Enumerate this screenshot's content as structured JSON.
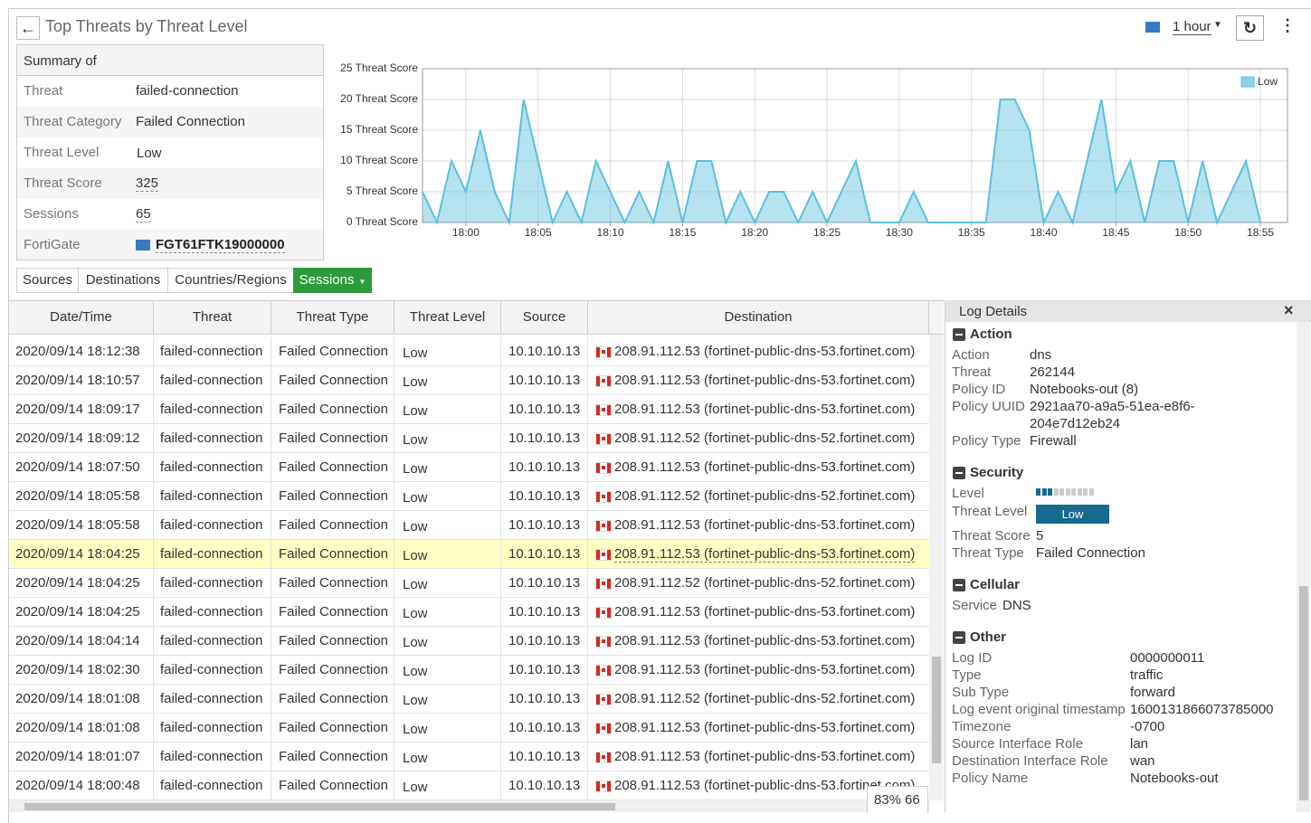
{
  "header": {
    "title": "Top Threats by Threat Level",
    "time_range": "1 hour"
  },
  "summary": {
    "title": "Summary of",
    "rows": [
      [
        "Threat",
        "failed-connection"
      ],
      [
        "Threat Category",
        "Failed Connection"
      ],
      [
        "Threat Level",
        "Low"
      ],
      [
        "Threat Score",
        "325"
      ],
      [
        "Sessions",
        "65"
      ],
      [
        "FortiGate",
        "FGT61FTK19000000"
      ]
    ]
  },
  "chart_data": {
    "type": "area",
    "categories": [
      null,
      null,
      null,
      "18:00",
      null,
      null,
      null,
      null,
      "18:05",
      null,
      null,
      null,
      null,
      "18:10",
      null,
      null,
      null,
      null,
      "18:15",
      null,
      null,
      null,
      null,
      "18:20",
      null,
      null,
      null,
      null,
      "18:25",
      null,
      null,
      null,
      null,
      "18:30",
      null,
      null,
      null,
      null,
      "18:35",
      null,
      null,
      null,
      null,
      "18:40",
      null,
      null,
      null,
      null,
      "18:45",
      null,
      null,
      null,
      null,
      "18:50",
      null,
      null,
      null,
      null,
      "18:55"
    ],
    "series": [
      {
        "name": "Low",
        "color": "#5bc0de",
        "values": [
          5,
          0,
          10,
          5,
          15,
          5,
          0,
          20,
          10,
          0,
          5,
          0,
          10,
          5,
          0,
          5,
          0,
          10,
          0,
          10,
          10,
          0,
          5,
          0,
          5,
          5,
          0,
          5,
          0,
          5,
          10,
          0,
          0,
          0,
          5,
          0,
          0,
          0,
          0,
          0,
          20,
          20,
          15,
          0,
          5,
          0,
          10,
          20,
          5,
          10,
          0,
          10,
          10,
          0,
          10,
          0,
          5,
          10,
          0
        ]
      }
    ],
    "ylim": [
      0,
      25
    ],
    "yticks": [
      {
        "value": 0,
        "label": "0 Threat Score"
      },
      {
        "value": 5,
        "label": "5 Threat Score"
      },
      {
        "value": 10,
        "label": "10 Threat Score"
      },
      {
        "value": 15,
        "label": "15 Threat Score"
      },
      {
        "value": 20,
        "label": "20 Threat Score"
      },
      {
        "value": 25,
        "label": "25 Threat Score"
      }
    ],
    "grid": true,
    "legend": "top-right"
  },
  "tabs": [
    "Sources",
    "Destinations",
    "Countries/Regions",
    "Sessions"
  ],
  "table": {
    "columns": [
      "Date/Time",
      "Threat",
      "Threat Type",
      "Threat Level",
      "Source",
      "Destination"
    ],
    "rows": [
      [
        "2020/09/14 18:12:38",
        "failed-connection",
        "Failed Connection",
        "Low",
        "10.10.10.13",
        "208.91.112.53 (fortinet-public-dns-53.fortinet.com)"
      ],
      [
        "2020/09/14 18:10:57",
        "failed-connection",
        "Failed Connection",
        "Low",
        "10.10.10.13",
        "208.91.112.53 (fortinet-public-dns-53.fortinet.com)"
      ],
      [
        "2020/09/14 18:09:17",
        "failed-connection",
        "Failed Connection",
        "Low",
        "10.10.10.13",
        "208.91.112.53 (fortinet-public-dns-53.fortinet.com)"
      ],
      [
        "2020/09/14 18:09:12",
        "failed-connection",
        "Failed Connection",
        "Low",
        "10.10.10.13",
        "208.91.112.52 (fortinet-public-dns-52.fortinet.com)"
      ],
      [
        "2020/09/14 18:07:50",
        "failed-connection",
        "Failed Connection",
        "Low",
        "10.10.10.13",
        "208.91.112.53 (fortinet-public-dns-53.fortinet.com)"
      ],
      [
        "2020/09/14 18:05:58",
        "failed-connection",
        "Failed Connection",
        "Low",
        "10.10.10.13",
        "208.91.112.52 (fortinet-public-dns-52.fortinet.com)"
      ],
      [
        "2020/09/14 18:05:58",
        "failed-connection",
        "Failed Connection",
        "Low",
        "10.10.10.13",
        "208.91.112.53 (fortinet-public-dns-53.fortinet.com)"
      ],
      [
        "2020/09/14 18:04:25",
        "failed-connection",
        "Failed Connection",
        "Low",
        "10.10.10.13",
        "208.91.112.53 (fortinet-public-dns-53.fortinet.com)"
      ],
      [
        "2020/09/14 18:04:25",
        "failed-connection",
        "Failed Connection",
        "Low",
        "10.10.10.13",
        "208.91.112.52 (fortinet-public-dns-52.fortinet.com)"
      ],
      [
        "2020/09/14 18:04:25",
        "failed-connection",
        "Failed Connection",
        "Low",
        "10.10.10.13",
        "208.91.112.53 (fortinet-public-dns-53.fortinet.com)"
      ],
      [
        "2020/09/14 18:04:14",
        "failed-connection",
        "Failed Connection",
        "Low",
        "10.10.10.13",
        "208.91.112.53 (fortinet-public-dns-53.fortinet.com)"
      ],
      [
        "2020/09/14 18:02:30",
        "failed-connection",
        "Failed Connection",
        "Low",
        "10.10.10.13",
        "208.91.112.53 (fortinet-public-dns-53.fortinet.com)"
      ],
      [
        "2020/09/14 18:01:08",
        "failed-connection",
        "Failed Connection",
        "Low",
        "10.10.10.13",
        "208.91.112.52 (fortinet-public-dns-52.fortinet.com)"
      ],
      [
        "2020/09/14 18:01:08",
        "failed-connection",
        "Failed Connection",
        "Low",
        "10.10.10.13",
        "208.91.112.53 (fortinet-public-dns-53.fortinet.com)"
      ],
      [
        "2020/09/14 18:01:07",
        "failed-connection",
        "Failed Connection",
        "Low",
        "10.10.10.13",
        "208.91.112.53 (fortinet-public-dns-53.fortinet.com)"
      ],
      [
        "2020/09/14 18:00:48",
        "failed-connection",
        "Failed Connection",
        "Low",
        "10.10.10.13",
        "208.91.112.53 (fortinet-public-dns-53.fortinet.com)"
      ]
    ]
  },
  "status": {
    "percent": "83%",
    "count": "66"
  },
  "log_details": {
    "title": "Log Details",
    "sections": [
      {
        "title": "Action",
        "fields": [
          [
            "Action",
            "dns"
          ],
          [
            "Threat",
            "262144"
          ],
          [
            "Policy ID",
            "Notebooks-out (8)"
          ],
          [
            "Policy UUID",
            "2921aa70-a9a5-51ea-e8f6-204e7d12eb24"
          ],
          [
            "Policy Type",
            "Firewall"
          ]
        ]
      },
      {
        "title": "Security",
        "fields": [
          [
            "Level",
            null
          ],
          [
            "Threat Level",
            "Low"
          ],
          [
            "Threat Score",
            "5"
          ],
          [
            "Threat Type",
            "Failed Connection"
          ]
        ]
      },
      {
        "title": "Cellular",
        "fields": [
          [
            "Service",
            "DNS"
          ]
        ]
      },
      {
        "title": "Other",
        "fields": [
          [
            "Log ID",
            "0000000011"
          ],
          [
            "Type",
            "traffic"
          ],
          [
            "Sub Type",
            "forward"
          ],
          [
            "Log event original timestamp",
            "1600131866073785000"
          ],
          [
            "Timezone",
            "-0700"
          ],
          [
            "Source Interface Role",
            "lan"
          ],
          [
            "Destination Interface Role",
            "wan"
          ],
          [
            "Policy Name",
            "Notebooks-out"
          ]
        ]
      }
    ]
  }
}
